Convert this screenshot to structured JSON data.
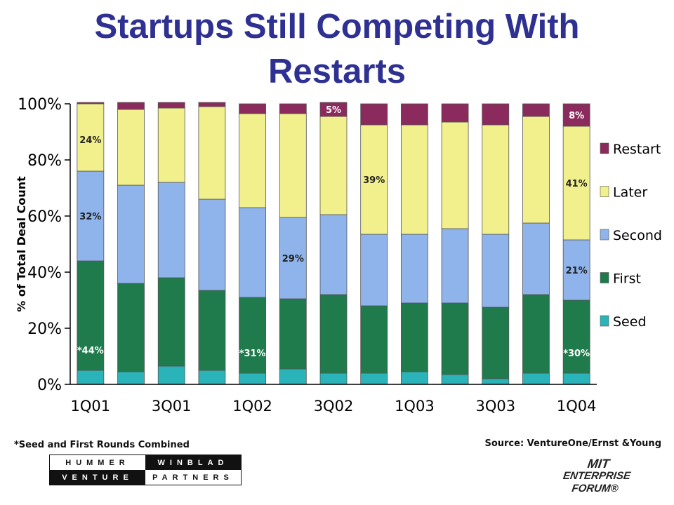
{
  "title": [
    "Startups Still Competing With",
    "Restarts"
  ],
  "footnote": "*Seed and First Rounds Combined",
  "source": "Source: VentureOne/Ernst &Young",
  "logos": {
    "hummer_winblad": [
      "HUMMER",
      "WINBLAD",
      "VENTURE",
      "PARTNERS"
    ],
    "mit": [
      "MIT",
      "ENTERPRISE",
      "FORUM®"
    ]
  },
  "chart_data": {
    "type": "bar",
    "stacked": true,
    "title": "",
    "xlabel": "",
    "ylabel": "% of Total Deal Count",
    "ylim": [
      0,
      100
    ],
    "yticks": [
      "0%",
      "20%",
      "40%",
      "60%",
      "80%",
      "100%"
    ],
    "categories": [
      "1Q01",
      "2Q01",
      "3Q01",
      "4Q01",
      "1Q02",
      "2Q02",
      "3Q02",
      "4Q02",
      "1Q03",
      "2Q03",
      "3Q03",
      "4Q03",
      "1Q04"
    ],
    "xtick_labels": [
      "1Q01",
      "",
      "3Q01",
      "",
      "1Q02",
      "",
      "3Q02",
      "",
      "1Q03",
      "",
      "3Q03",
      "",
      "1Q04"
    ],
    "legend_position": "right",
    "grid": false,
    "colors": {
      "Seed": "#2ab3b8",
      "First": "#1f7a4c",
      "Second": "#8fb4ec",
      "Later": "#f2f08c",
      "Restart": "#8b2a5c"
    },
    "series": [
      {
        "name": "Seed",
        "values": [
          5,
          4.5,
          6.5,
          5,
          4,
          5.5,
          4,
          4,
          4.5,
          3.5,
          2,
          4,
          4
        ]
      },
      {
        "name": "First",
        "values": [
          39,
          31.5,
          31.5,
          28.5,
          27,
          25,
          28,
          24,
          24.5,
          25.5,
          25.5,
          28,
          26
        ]
      },
      {
        "name": "Second",
        "values": [
          32,
          35,
          34,
          32.5,
          32,
          29,
          28.5,
          25.5,
          24.5,
          26.5,
          26,
          25.5,
          21.5
        ]
      },
      {
        "name": "Later",
        "values": [
          24,
          27,
          26.5,
          33,
          33.5,
          37,
          35,
          39,
          39,
          38,
          39,
          38,
          40.5
        ]
      },
      {
        "name": "Restart",
        "values": [
          0.5,
          2.5,
          2,
          1.5,
          3.5,
          3.5,
          5,
          7.5,
          7.5,
          6.5,
          7.5,
          4.5,
          8
        ]
      }
    ],
    "annotations": [
      {
        "category": "1Q01",
        "series": "Later",
        "text": "24%"
      },
      {
        "category": "1Q01",
        "series": "Second",
        "text": "32%"
      },
      {
        "category": "1Q01",
        "series": "First",
        "text": "*44%"
      },
      {
        "category": "1Q02",
        "series": "First",
        "text": "*31%"
      },
      {
        "category": "2Q02",
        "series": "Second",
        "text": "29%"
      },
      {
        "category": "3Q02",
        "series": "Restart",
        "text": "5%"
      },
      {
        "category": "4Q02",
        "series": "Later",
        "text": "39%"
      },
      {
        "category": "1Q04",
        "series": "Restart",
        "text": "8%"
      },
      {
        "category": "1Q04",
        "series": "Later",
        "text": "41%"
      },
      {
        "category": "1Q04",
        "series": "Second",
        "text": "21%"
      },
      {
        "category": "1Q04",
        "series": "First",
        "text": "*30%"
      }
    ]
  }
}
